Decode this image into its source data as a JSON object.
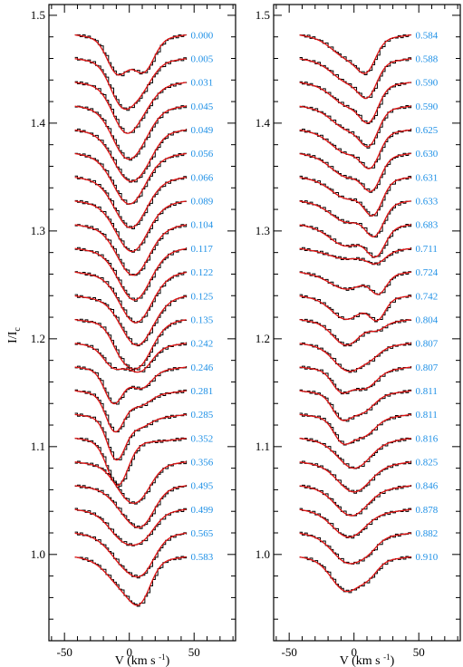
{
  "chart_data": [
    {
      "type": "line",
      "panel": "left",
      "xlabel": "V (km s⁻¹)",
      "ylabel": "I/I",
      "ylabel_sub": "c",
      "xlim": [
        -62,
        82
      ],
      "ylim": [
        0.92,
        1.51
      ],
      "xticks": [
        -50,
        0,
        50
      ],
      "yticks": [
        1.0,
        1.1,
        1.2,
        1.3,
        1.4,
        1.5
      ],
      "ytick_labels": [
        "1.0",
        "1.1",
        "1.2",
        "1.3",
        "1.4",
        "1.5"
      ],
      "profile_x_range": [
        -42,
        44
      ],
      "colors": {
        "observed": "#000000",
        "model": "#e11414",
        "phase_label": "#1e90e6"
      },
      "profiles": [
        {
          "phase": "0.000",
          "continuum": 1.482,
          "comps": [
            {
              "v": -9,
              "d": 0.032,
              "w": 8
            },
            {
              "v": 11,
              "d": 0.03,
              "w": 8
            }
          ]
        },
        {
          "phase": "0.005",
          "continuum": 1.46,
          "comps": [
            {
              "v": -6,
              "d": 0.036,
              "w": 9
            },
            {
              "v": 9,
              "d": 0.022,
              "w": 9
            }
          ]
        },
        {
          "phase": "0.031",
          "continuum": 1.438,
          "comps": [
            {
              "v": -3,
              "d": 0.04,
              "w": 10
            },
            {
              "v": 12,
              "d": 0.012,
              "w": 9
            }
          ]
        },
        {
          "phase": "0.045",
          "continuum": 1.416,
          "comps": [
            {
              "v": -2,
              "d": 0.042,
              "w": 11
            },
            {
              "v": 12,
              "d": 0.01,
              "w": 9
            }
          ]
        },
        {
          "phase": "0.049",
          "continuum": 1.394,
          "comps": [
            {
              "v": 0,
              "d": 0.042,
              "w": 12
            },
            {
              "v": 14,
              "d": 0.008,
              "w": 8
            }
          ]
        },
        {
          "phase": "0.056",
          "continuum": 1.372,
          "comps": [
            {
              "v": 0,
              "d": 0.043,
              "w": 12
            }
          ]
        },
        {
          "phase": "0.066",
          "continuum": 1.35,
          "comps": [
            {
              "v": 1,
              "d": 0.043,
              "w": 12
            }
          ]
        },
        {
          "phase": "0.089",
          "continuum": 1.328,
          "comps": [
            {
              "v": 2,
              "d": 0.043,
              "w": 12
            }
          ]
        },
        {
          "phase": "0.104",
          "continuum": 1.306,
          "comps": [
            {
              "v": 3,
              "d": 0.043,
              "w": 12
            }
          ]
        },
        {
          "phase": "0.117",
          "continuum": 1.284,
          "comps": [
            {
              "v": 4,
              "d": 0.044,
              "w": 12
            }
          ]
        },
        {
          "phase": "0.122",
          "continuum": 1.262,
          "comps": [
            {
              "v": 5,
              "d": 0.043,
              "w": 12
            }
          ]
        },
        {
          "phase": "0.125",
          "continuum": 1.24,
          "comps": [
            {
              "v": 6,
              "d": 0.042,
              "w": 12
            }
          ]
        },
        {
          "phase": "0.135",
          "continuum": 1.218,
          "comps": [
            {
              "v": 6,
              "d": 0.04,
              "w": 11
            },
            {
              "v": -8,
              "d": 0.012,
              "w": 7
            }
          ]
        },
        {
          "phase": "0.242",
          "continuum": 1.196,
          "comps": [
            {
              "v": -12,
              "d": 0.018,
              "w": 8
            },
            {
              "v": 8,
              "d": 0.022,
              "w": 9
            }
          ]
        },
        {
          "phase": "0.246",
          "continuum": 1.174,
          "comps": [
            {
              "v": -12,
              "d": 0.03,
              "w": 7
            },
            {
              "v": 9,
              "d": 0.016,
              "w": 8
            }
          ]
        },
        {
          "phase": "0.281",
          "continuum": 1.152,
          "comps": [
            {
              "v": -11,
              "d": 0.034,
              "w": 7
            },
            {
              "v": 8,
              "d": 0.01,
              "w": 8
            }
          ]
        },
        {
          "phase": "0.285",
          "continuum": 1.13,
          "comps": [
            {
              "v": -10,
              "d": 0.038,
              "w": 7
            },
            {
              "v": 8,
              "d": 0.008,
              "w": 8
            }
          ]
        },
        {
          "phase": "0.352",
          "continuum": 1.108,
          "comps": [
            {
              "v": -9,
              "d": 0.04,
              "w": 8
            }
          ]
        },
        {
          "phase": "0.356",
          "continuum": 1.086,
          "comps": [
            {
              "v": -2,
              "d": 0.024,
              "w": 10
            },
            {
              "v": 10,
              "d": 0.018,
              "w": 9
            }
          ]
        },
        {
          "phase": "0.495",
          "continuum": 1.064,
          "comps": [
            {
              "v": 0,
              "d": 0.022,
              "w": 11
            },
            {
              "v": 12,
              "d": 0.02,
              "w": 9
            }
          ]
        },
        {
          "phase": "0.499",
          "continuum": 1.042,
          "comps": [
            {
              "v": -4,
              "d": 0.024,
              "w": 11
            },
            {
              "v": 12,
              "d": 0.016,
              "w": 9
            }
          ]
        },
        {
          "phase": "0.565",
          "continuum": 1.02,
          "comps": [
            {
              "v": -2,
              "d": 0.026,
              "w": 12
            },
            {
              "v": 12,
              "d": 0.02,
              "w": 9
            }
          ]
        },
        {
          "phase": "0.583",
          "continuum": 0.998,
          "comps": [
            {
              "v": -4,
              "d": 0.024,
              "w": 12
            },
            {
              "v": 9,
              "d": 0.026,
              "w": 8
            }
          ]
        }
      ]
    },
    {
      "type": "line",
      "panel": "right",
      "xlabel": "V (km s⁻¹)",
      "xlim": [
        -62,
        82
      ],
      "ylim": [
        0.92,
        1.51
      ],
      "xticks": [
        -50,
        0,
        50
      ],
      "yticks": [
        1.0,
        1.1,
        1.2,
        1.3,
        1.4,
        1.5
      ],
      "ytick_labels": [
        "1.0",
        "1.1",
        "1.2",
        "1.3",
        "1.4",
        "1.5"
      ],
      "profile_x_range": [
        -42,
        44
      ],
      "colors": {
        "observed": "#000000",
        "model": "#e11414",
        "phase_label": "#1e90e6"
      },
      "profiles": [
        {
          "phase": "0.584",
          "continuum": 1.482,
          "comps": [
            {
              "v": -4,
              "d": 0.018,
              "w": 12
            },
            {
              "v": 10,
              "d": 0.022,
              "w": 7
            }
          ]
        },
        {
          "phase": "0.588",
          "continuum": 1.46,
          "comps": [
            {
              "v": -4,
              "d": 0.018,
              "w": 12
            },
            {
              "v": 11,
              "d": 0.024,
              "w": 7
            }
          ]
        },
        {
          "phase": "0.590",
          "continuum": 1.438,
          "comps": [
            {
              "v": -4,
              "d": 0.018,
              "w": 12
            },
            {
              "v": 12,
              "d": 0.026,
              "w": 7
            }
          ]
        },
        {
          "phase": "0.590",
          "continuum": 1.416,
          "comps": [
            {
              "v": -4,
              "d": 0.018,
              "w": 12
            },
            {
              "v": 12,
              "d": 0.026,
              "w": 7
            }
          ]
        },
        {
          "phase": "0.625",
          "continuum": 1.394,
          "comps": [
            {
              "v": -5,
              "d": 0.018,
              "w": 12
            },
            {
              "v": 13,
              "d": 0.026,
              "w": 7
            }
          ]
        },
        {
          "phase": "0.630",
          "continuum": 1.372,
          "comps": [
            {
              "v": -5,
              "d": 0.018,
              "w": 12
            },
            {
              "v": 14,
              "d": 0.026,
              "w": 7
            }
          ]
        },
        {
          "phase": "0.631",
          "continuum": 1.35,
          "comps": [
            {
              "v": -5,
              "d": 0.016,
              "w": 12
            },
            {
              "v": 15,
              "d": 0.028,
              "w": 7
            }
          ]
        },
        {
          "phase": "0.633",
          "continuum": 1.328,
          "comps": [
            {
              "v": -5,
              "d": 0.016,
              "w": 12
            },
            {
              "v": 16,
              "d": 0.026,
              "w": 7
            }
          ]
        },
        {
          "phase": "0.683",
          "continuum": 1.306,
          "comps": [
            {
              "v": -6,
              "d": 0.016,
              "w": 12
            },
            {
              "v": 17,
              "d": 0.024,
              "w": 7
            }
          ]
        },
        {
          "phase": "0.711",
          "continuum": 1.284,
          "comps": [
            {
              "v": -6,
              "d": 0.006,
              "w": 12
            },
            {
              "v": 17,
              "d": 0.01,
              "w": 7
            }
          ]
        },
        {
          "phase": "0.724",
          "continuum": 1.262,
          "comps": [
            {
              "v": -6,
              "d": 0.012,
              "w": 12
            },
            {
              "v": 19,
              "d": 0.016,
              "w": 6
            }
          ]
        },
        {
          "phase": "0.742",
          "continuum": 1.24,
          "comps": [
            {
              "v": -6,
              "d": 0.018,
              "w": 11
            },
            {
              "v": 18,
              "d": 0.018,
              "w": 6
            }
          ]
        },
        {
          "phase": "0.804",
          "continuum": 1.218,
          "comps": [
            {
              "v": -6,
              "d": 0.02,
              "w": 10
            },
            {
              "v": 18,
              "d": 0.006,
              "w": 6
            }
          ]
        },
        {
          "phase": "0.807",
          "continuum": 1.196,
          "comps": [
            {
              "v": -4,
              "d": 0.022,
              "w": 11
            },
            {
              "v": 14,
              "d": 0.006,
              "w": 7
            }
          ]
        },
        {
          "phase": "0.807",
          "continuum": 1.174,
          "comps": [
            {
              "v": -10,
              "d": 0.018,
              "w": 7
            },
            {
              "v": 8,
              "d": 0.016,
              "w": 9
            }
          ]
        },
        {
          "phase": "0.811",
          "continuum": 1.152,
          "comps": [
            {
              "v": -10,
              "d": 0.02,
              "w": 7
            },
            {
              "v": 6,
              "d": 0.016,
              "w": 9
            }
          ]
        },
        {
          "phase": "0.811",
          "continuum": 1.13,
          "comps": [
            {
              "v": -9,
              "d": 0.02,
              "w": 7
            },
            {
              "v": 7,
              "d": 0.016,
              "w": 9
            }
          ]
        },
        {
          "phase": "0.816",
          "continuum": 1.108,
          "comps": [
            {
              "v": 0,
              "d": 0.024,
              "w": 12
            }
          ]
        },
        {
          "phase": "0.825",
          "continuum": 1.086,
          "comps": [
            {
              "v": 0,
              "d": 0.024,
              "w": 12
            }
          ]
        },
        {
          "phase": "0.846",
          "continuum": 1.064,
          "comps": [
            {
              "v": -2,
              "d": 0.024,
              "w": 12
            }
          ]
        },
        {
          "phase": "0.878",
          "continuum": 1.042,
          "comps": [
            {
              "v": -4,
              "d": 0.022,
              "w": 12
            }
          ]
        },
        {
          "phase": "0.882",
          "continuum": 1.02,
          "comps": [
            {
              "v": -4,
              "d": 0.024,
              "w": 12
            },
            {
              "v": 12,
              "d": 0.006,
              "w": 7
            }
          ]
        },
        {
          "phase": "0.910",
          "continuum": 0.998,
          "comps": [
            {
              "v": -6,
              "d": 0.028,
              "w": 11
            },
            {
              "v": 12,
              "d": 0.01,
              "w": 7
            }
          ]
        }
      ]
    }
  ]
}
